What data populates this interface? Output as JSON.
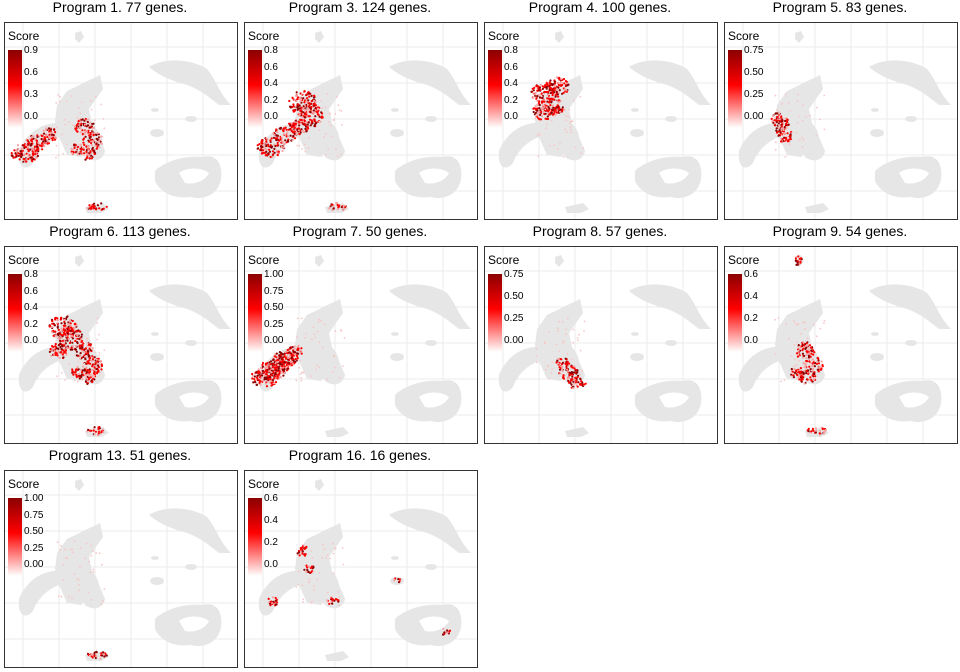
{
  "chart_data": [
    {
      "type": "scatter",
      "title": "Program 1. 77 genes.",
      "legend_title": "Score",
      "legend_ticks": [
        "0.0",
        "0.3",
        "0.6",
        "0.9"
      ],
      "colors": [
        "#ffffff",
        "#ff0000",
        "#8b0000"
      ],
      "grid": true,
      "highlight": [
        "bottom-left",
        "center-right",
        "small-bottom"
      ]
    },
    {
      "type": "scatter",
      "title": "Program 3. 124 genes.",
      "legend_title": "Score",
      "legend_ticks": [
        "0.0",
        "0.2",
        "0.4",
        "0.6",
        "0.8"
      ],
      "colors": [
        "#ffffff",
        "#ff0000",
        "#8b0000"
      ],
      "grid": true,
      "highlight": [
        "upper-left",
        "left-arm",
        "small-bottom"
      ]
    },
    {
      "type": "scatter",
      "title": "Program 4. 100 genes.",
      "legend_title": "Score",
      "legend_ticks": [
        "0.0",
        "0.2",
        "0.4",
        "0.6",
        "0.8"
      ],
      "colors": [
        "#ffffff",
        "#ff0000",
        "#8b0000"
      ],
      "grid": true,
      "highlight": [
        "upper-center"
      ]
    },
    {
      "type": "scatter",
      "title": "Program 5. 83 genes.",
      "legend_title": "Score",
      "legend_ticks": [
        "0.00",
        "0.25",
        "0.50",
        "0.75"
      ],
      "colors": [
        "#ffffff",
        "#ff0000",
        "#8b0000"
      ],
      "grid": true,
      "highlight": [
        "center-stem"
      ]
    },
    {
      "type": "scatter",
      "title": "Program 6. 113 genes.",
      "legend_title": "Score",
      "legend_ticks": [
        "0.0",
        "0.2",
        "0.4",
        "0.6",
        "0.8"
      ],
      "colors": [
        "#ffffff",
        "#ff0000",
        "#8b0000"
      ],
      "grid": true,
      "highlight": [
        "center-right",
        "upper-left",
        "small-bottom"
      ]
    },
    {
      "type": "scatter",
      "title": "Program 7. 50 genes.",
      "legend_title": "Score",
      "legend_ticks": [
        "0.00",
        "0.25",
        "0.50",
        "0.75",
        "1.00"
      ],
      "colors": [
        "#ffffff",
        "#ff0000",
        "#8b0000"
      ],
      "grid": true,
      "highlight": [
        "bottom-left",
        "left-arm"
      ]
    },
    {
      "type": "scatter",
      "title": "Program 8. 57 genes.",
      "legend_title": "Score",
      "legend_ticks": [
        "0.00",
        "0.25",
        "0.50",
        "0.75"
      ],
      "colors": [
        "#ffffff",
        "#ff0000",
        "#8b0000"
      ],
      "grid": true,
      "highlight": [
        "right-lower"
      ]
    },
    {
      "type": "scatter",
      "title": "Program 9. 54 genes.",
      "legend_title": "Score",
      "legend_ticks": [
        "0.0",
        "0.2",
        "0.4",
        "0.6"
      ],
      "colors": [
        "#ffffff",
        "#ff0000",
        "#8b0000"
      ],
      "grid": true,
      "highlight": [
        "top-island",
        "center-right",
        "small-bottom"
      ]
    },
    {
      "type": "scatter",
      "title": "Program 13. 51 genes.",
      "legend_title": "Score",
      "legend_ticks": [
        "0.00",
        "0.25",
        "0.50",
        "0.75",
        "1.00"
      ],
      "colors": [
        "#ffffff",
        "#ff0000",
        "#8b0000"
      ],
      "grid": true,
      "highlight": [
        "small-bottom"
      ]
    },
    {
      "type": "scatter",
      "title": "Program 16. 16 genes.",
      "legend_title": "Score",
      "legend_ticks": [
        "0.0",
        "0.2",
        "0.4",
        "0.6"
      ],
      "colors": [
        "#ffffff",
        "#ff0000",
        "#8b0000"
      ],
      "grid": true,
      "highlight": [
        "scattered"
      ]
    }
  ]
}
